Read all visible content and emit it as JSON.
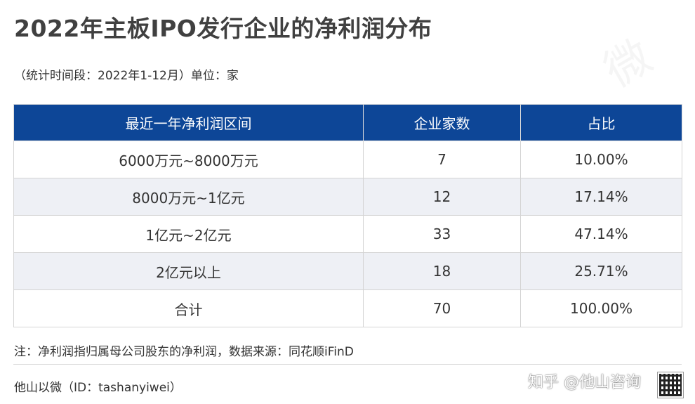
{
  "title": "2022年主板IPO发行企业的净利润分布",
  "subtitle": "（统计时间段：2022年1-12月）单位：家",
  "table": {
    "headers": [
      "最近一年净利润区间",
      "企业家数",
      "占比"
    ],
    "rows": [
      [
        "6000万元~8000万元",
        "7",
        "10.00%"
      ],
      [
        "8000万元~1亿元",
        "12",
        "17.14%"
      ],
      [
        "1亿元~2亿元",
        "33",
        "47.14%"
      ],
      [
        "2亿元以上",
        "18",
        "25.71%"
      ],
      [
        "合计",
        "70",
        "100.00%"
      ]
    ]
  },
  "note": "注：净利润指归属母公司股东的净利润，数据来源：同花顺iFinD",
  "brand": "他山以微（ID：tashanyiwei）",
  "overlay": {
    "zhihu_watermark": "知乎 @他山咨询"
  },
  "colors": {
    "header_bg": "#0d4697",
    "alt_row_bg": "#eef0f5"
  }
}
